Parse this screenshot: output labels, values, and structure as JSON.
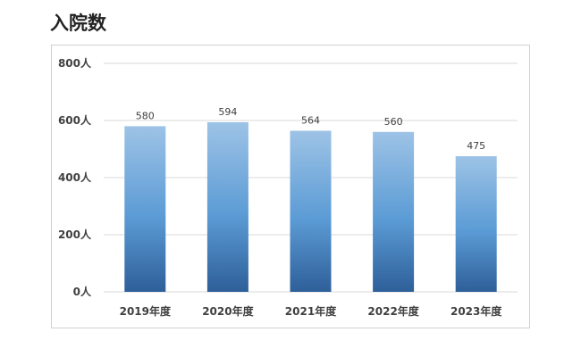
{
  "page": {
    "title": "入院数"
  },
  "chart_data": {
    "type": "bar",
    "title": "",
    "xlabel": "",
    "ylabel": "",
    "categories": [
      "2019年度",
      "2020年度",
      "2021年度",
      "2022年度",
      "2023年度"
    ],
    "values": [
      580,
      594,
      564,
      560,
      475
    ],
    "data_labels": [
      "580",
      "594",
      "564",
      "560",
      "475"
    ],
    "ylim": [
      0,
      800
    ],
    "yticks": [
      0,
      200,
      400,
      600,
      800
    ],
    "ytick_labels": [
      "0人",
      "200人",
      "400人",
      "600人",
      "800人"
    ],
    "grid": true,
    "legend": "none",
    "bar_gradient": {
      "top": "#9dc3e6",
      "middle": "#5b9bd5",
      "bottom": "#2e5f99"
    },
    "gridline_color": "#d9d9d9"
  }
}
